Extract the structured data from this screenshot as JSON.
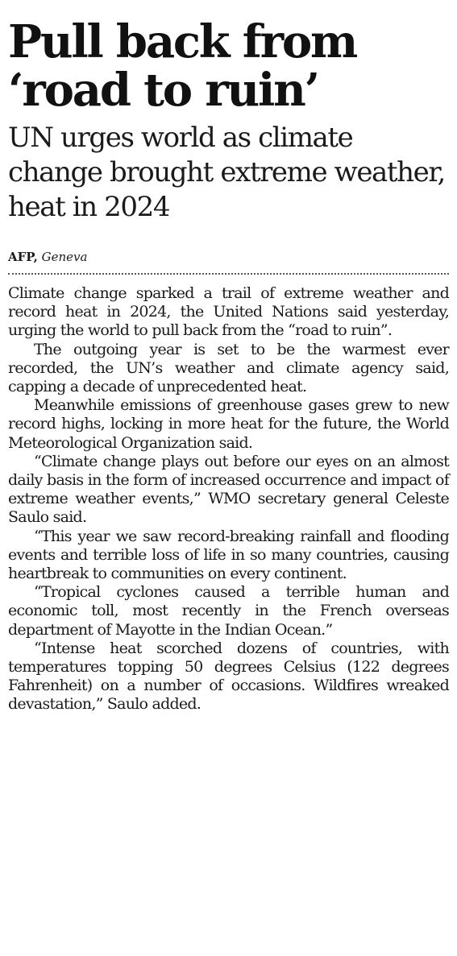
{
  "headline": "Pull back from ‘road to ruin’",
  "subheadline": "UN urges world as climate change brought extreme weather, heat in 2024",
  "byline": {
    "agency": "AFP,",
    "place": "Geneva"
  },
  "paragraphs": [
    "Climate change sparked a trail of extreme weather and record heat in 2024, the United Nations said yesterday, urging the world to pull back from the “road to ruin”.",
    "The outgoing year is set to be the warmest ever recorded, the UN’s weather and climate agency said, capping a decade of unprecedented heat.",
    "Meanwhile emissions of greenhouse gases grew to new record highs, locking in more heat for the future, the World Meteorological Organization said.",
    "“Climate change plays out before our eyes on an almost daily basis in the form of increased occurrence and impact of extreme weather events,” WMO secretary general Celeste Saulo said.",
    "“This year we saw record-breaking rainfall and flooding events and terrible loss of life in so many countries, causing heartbreak to communities on every continent.",
    "“Tropical cyclones caused a terrible human and economic toll, most recently in the French overseas department of Mayotte in the Indian Ocean.”",
    "“Intense heat scorched dozens of countries, with temperatures topping 50 degrees Celsius (122 degrees Fahrenheit) on a number of occasions. Wildfires wreaked devastation,” Saulo added."
  ]
}
